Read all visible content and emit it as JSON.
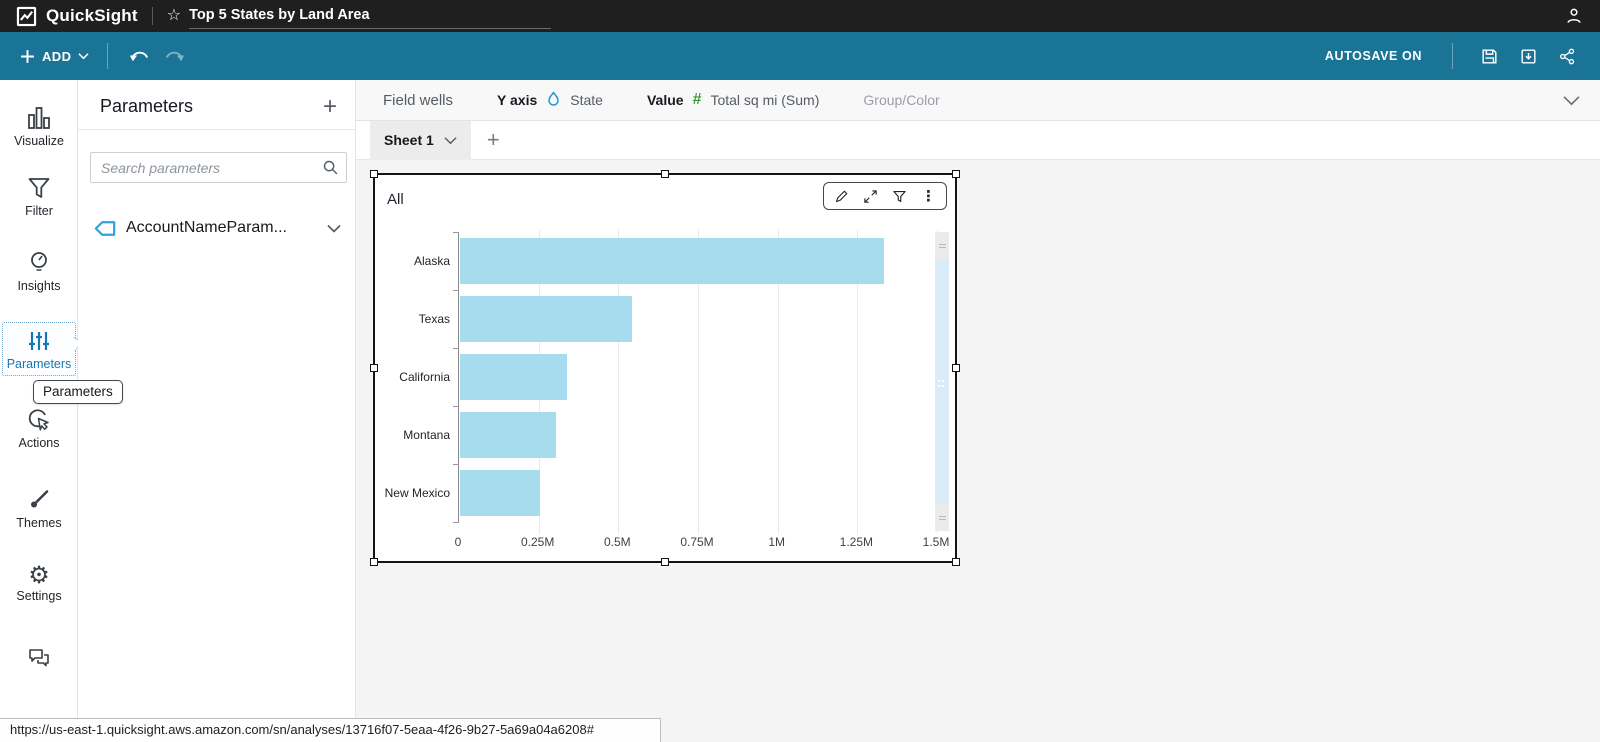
{
  "topbar": {
    "app_name": "QuickSight",
    "analysis_title": "Top 5 States by Land Area"
  },
  "bluebar": {
    "add_label": "ADD",
    "autosave_label": "AUTOSAVE ON"
  },
  "sidebar": {
    "items": [
      {
        "label": "Visualize",
        "active": false
      },
      {
        "label": "Filter",
        "active": false
      },
      {
        "label": "Insights",
        "active": false
      },
      {
        "label": "Parameters",
        "active": true
      },
      {
        "label": "Actions",
        "active": false
      },
      {
        "label": "Themes",
        "active": false
      },
      {
        "label": "Settings",
        "active": false
      }
    ]
  },
  "tooltip": {
    "text": "Parameters"
  },
  "parameters_panel": {
    "title": "Parameters",
    "add_label": "+",
    "search_placeholder": "Search parameters",
    "items": [
      {
        "name": "AccountNameParam..."
      }
    ]
  },
  "field_wells": {
    "label": "Field wells",
    "wells": [
      {
        "label": "Y axis",
        "icon": "dimension-pin-icon",
        "field": "State"
      },
      {
        "label": "Value",
        "icon": "measure-hash-icon",
        "field": "Total sq mi (Sum)"
      },
      {
        "label": "Group/Color",
        "icon": "",
        "field": ""
      }
    ]
  },
  "sheet_tabs": {
    "active_label": "Sheet 1",
    "add_label": "+"
  },
  "visual": {
    "title": "All"
  },
  "chart_data": {
    "type": "bar",
    "orientation": "horizontal",
    "title": "All",
    "categories": [
      "Alaska",
      "Texas",
      "California",
      "Montana",
      "New Mexico"
    ],
    "values": [
      1330000,
      540000,
      335000,
      300000,
      250000
    ],
    "value_field": "Total sq mi (Sum)",
    "category_field": "State",
    "xlabel": "",
    "ylabel": "",
    "x_ticks": [
      "0",
      "0.25M",
      "0.5M",
      "0.75M",
      "1M",
      "1.25M",
      "1.5M"
    ],
    "xlim": [
      0,
      1500000
    ],
    "grid": true,
    "legend": "none",
    "bar_color": "#a6dcee"
  },
  "statusbar": {
    "url": "https://us-east-1.quicksight.aws.amazon.com/sn/analyses/13716f07-5eaa-4f26-9b27-5a69a04a6208#"
  },
  "colors": {
    "topbar": "#1f1f1f",
    "toolbar_blue": "#1a7495",
    "accent_blue": "#1577b5",
    "tag_blue": "#2ea1dc",
    "pin_blue": "#2196d3",
    "value_green": "#3e9c35",
    "bar_fill": "#a6dcee",
    "canvas": "#f4f4f4"
  }
}
